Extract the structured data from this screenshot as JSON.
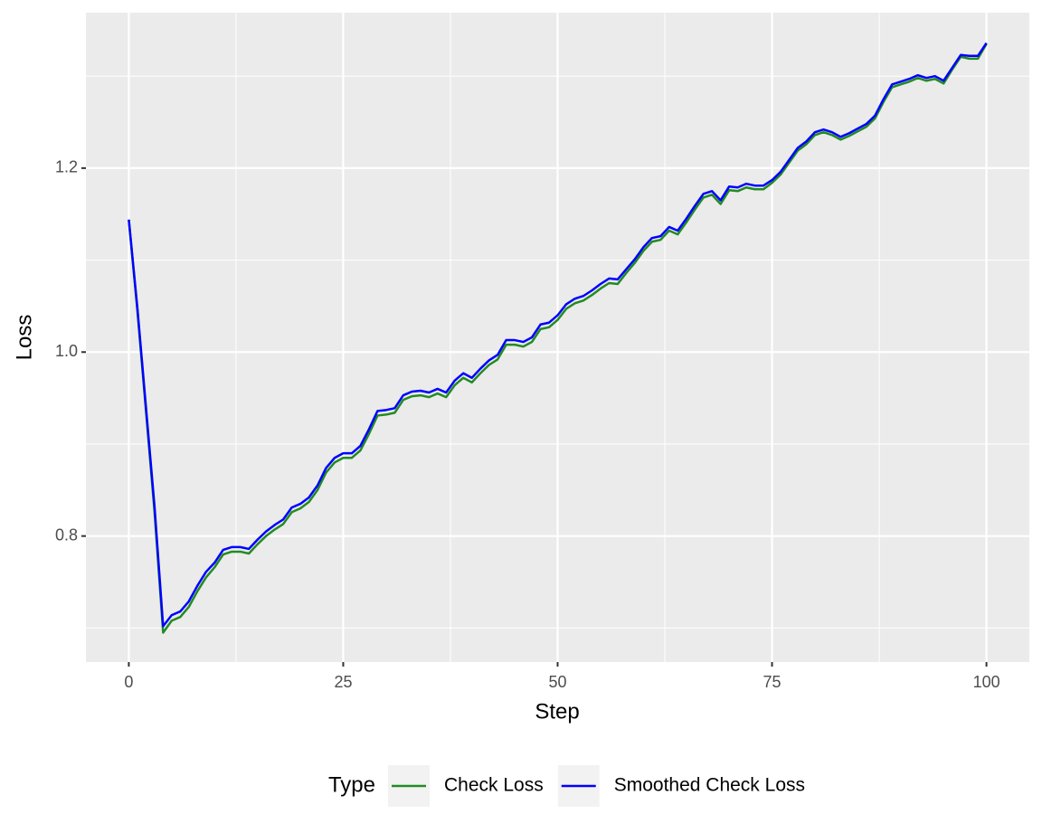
{
  "chart_data": {
    "type": "line",
    "x_label": "Step",
    "y_label": "Loss",
    "x": [
      0,
      1,
      2,
      3,
      4,
      5,
      6,
      7,
      8,
      9,
      10,
      11,
      12,
      13,
      14,
      15,
      16,
      17,
      18,
      19,
      20,
      21,
      22,
      23,
      24,
      25,
      26,
      27,
      28,
      29,
      30,
      31,
      32,
      33,
      34,
      35,
      36,
      37,
      38,
      39,
      40,
      41,
      42,
      43,
      44,
      45,
      46,
      47,
      48,
      49,
      50,
      51,
      52,
      53,
      54,
      55,
      56,
      57,
      58,
      59,
      60,
      61,
      62,
      63,
      64,
      65,
      66,
      67,
      68,
      69,
      70,
      71,
      72,
      73,
      74,
      75,
      76,
      77,
      78,
      79,
      80,
      81,
      82,
      83,
      84,
      85,
      86,
      87,
      88,
      89,
      90,
      91,
      92,
      93,
      94,
      95,
      96,
      97,
      98,
      99,
      100
    ],
    "series": [
      {
        "name": "Check Loss",
        "color": "#228B22",
        "values": [
          1.144,
          1.045,
          0.936,
          0.826,
          0.695,
          0.708,
          0.712,
          0.723,
          0.74,
          0.755,
          0.766,
          0.78,
          0.783,
          0.783,
          0.781,
          0.791,
          0.8,
          0.807,
          0.813,
          0.826,
          0.83,
          0.837,
          0.85,
          0.869,
          0.88,
          0.885,
          0.885,
          0.893,
          0.911,
          0.931,
          0.932,
          0.934,
          0.948,
          0.952,
          0.953,
          0.951,
          0.955,
          0.951,
          0.964,
          0.972,
          0.967,
          0.977,
          0.986,
          0.992,
          1.008,
          1.008,
          1.006,
          1.011,
          1.025,
          1.027,
          1.035,
          1.047,
          1.053,
          1.056,
          1.062,
          1.069,
          1.075,
          1.074,
          1.086,
          1.097,
          1.11,
          1.12,
          1.122,
          1.132,
          1.128,
          1.141,
          1.155,
          1.168,
          1.171,
          1.161,
          1.176,
          1.175,
          1.179,
          1.177,
          1.177,
          1.184,
          1.193,
          1.206,
          1.219,
          1.226,
          1.236,
          1.239,
          1.236,
          1.231,
          1.235,
          1.24,
          1.245,
          1.254,
          1.272,
          1.288,
          1.291,
          1.294,
          1.298,
          1.295,
          1.297,
          1.292,
          1.307,
          1.321,
          1.319,
          1.319,
          1.335
        ]
      },
      {
        "name": "Smoothed Check Loss",
        "color": "#0000FF",
        "values": [
          1.144,
          1.048,
          0.94,
          0.832,
          0.702,
          0.714,
          0.718,
          0.729,
          0.746,
          0.761,
          0.771,
          0.785,
          0.788,
          0.788,
          0.786,
          0.796,
          0.805,
          0.812,
          0.818,
          0.831,
          0.835,
          0.842,
          0.855,
          0.874,
          0.885,
          0.89,
          0.89,
          0.898,
          0.916,
          0.936,
          0.937,
          0.939,
          0.953,
          0.957,
          0.958,
          0.956,
          0.96,
          0.956,
          0.969,
          0.977,
          0.972,
          0.982,
          0.991,
          0.997,
          1.013,
          1.013,
          1.011,
          1.016,
          1.03,
          1.032,
          1.04,
          1.052,
          1.058,
          1.061,
          1.067,
          1.074,
          1.08,
          1.079,
          1.09,
          1.101,
          1.114,
          1.124,
          1.126,
          1.136,
          1.132,
          1.145,
          1.159,
          1.172,
          1.175,
          1.165,
          1.18,
          1.179,
          1.183,
          1.181,
          1.181,
          1.187,
          1.196,
          1.209,
          1.222,
          1.229,
          1.239,
          1.242,
          1.239,
          1.234,
          1.238,
          1.243,
          1.248,
          1.257,
          1.275,
          1.291,
          1.294,
          1.297,
          1.301,
          1.298,
          1.3,
          1.295,
          1.309,
          1.323,
          1.322,
          1.322,
          1.336
        ]
      }
    ],
    "xlim": [
      -5,
      105
    ],
    "xticks": [
      0,
      25,
      50,
      75,
      100
    ],
    "ylim": [
      0.663,
      1.369
    ],
    "yticks": [
      0.8,
      {
        "value": 1,
        "label": "1.0"
      },
      1.2
    ],
    "grid": true,
    "legend_title": "Type",
    "legend_position": "bottom"
  }
}
